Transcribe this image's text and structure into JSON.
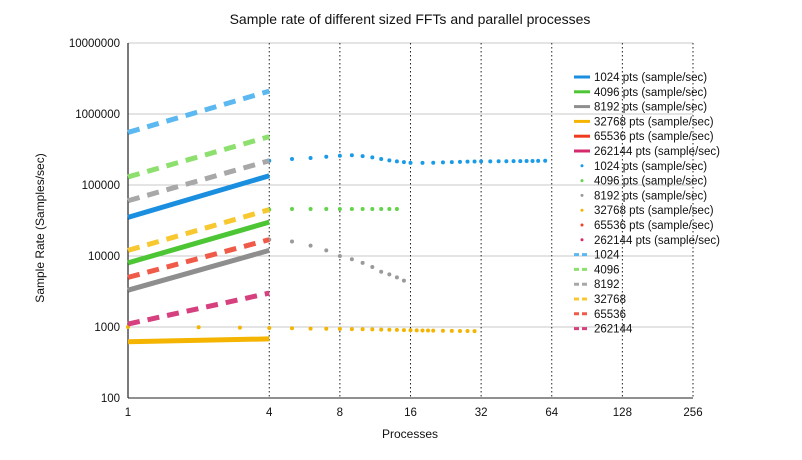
{
  "chart_data": {
    "type": "line",
    "title": "Sample rate of different sized FFTs and parallel processes",
    "xlabel": "Processes",
    "ylabel": "Sample Rate (Samples/sec)",
    "x_scale": "log2",
    "y_scale": "log10",
    "xlim": [
      1,
      256
    ],
    "ylim": [
      100,
      10000000
    ],
    "x_ticks": [
      "1",
      "4",
      "8",
      "16",
      "32",
      "64",
      "128",
      "256"
    ],
    "y_ticks": [
      "100",
      "1000",
      "10000",
      "100000",
      "1000000",
      "10000000"
    ],
    "grid": "vertical dotted, horizontal solid",
    "legend_position": "right",
    "series": [
      {
        "name": "1024 pts (sample/sec)",
        "style": "solid",
        "color": "#1a8fe0",
        "x": [
          1,
          4
        ],
        "y": [
          35000,
          135000
        ]
      },
      {
        "name": "4096 pts (sample/sec)",
        "style": "solid",
        "color": "#4cc634",
        "x": [
          1,
          4
        ],
        "y": [
          8000,
          30000
        ]
      },
      {
        "name": "8192 pts (sample/sec)",
        "style": "solid",
        "color": "#8e8e8e",
        "x": [
          1,
          4
        ],
        "y": [
          3300,
          12000
        ]
      },
      {
        "name": "32768 pts (sample/sec)",
        "style": "solid",
        "color": "#f5b400",
        "x": [
          1,
          4
        ],
        "y": [
          620,
          680
        ]
      },
      {
        "name": "65536 pts (sample/sec)",
        "style": "solid",
        "color": "#f03a1e",
        "x": [],
        "y": []
      },
      {
        "name": "262144 pts (sample/sec)",
        "style": "solid",
        "color": "#d62a6e",
        "x": [],
        "y": []
      },
      {
        "name": "1024 pts (sample/sec)",
        "style": "dotted",
        "color": "#1a9be8",
        "x": [
          4,
          5,
          6,
          7,
          8,
          9,
          10,
          11,
          12,
          13,
          14,
          15,
          16,
          18,
          20,
          22,
          24,
          26,
          28,
          30,
          32,
          35,
          38,
          41,
          44,
          47,
          50,
          53,
          56,
          60
        ],
        "y": [
          220000,
          232000,
          240000,
          250000,
          258000,
          262000,
          255000,
          245000,
          232000,
          222000,
          215000,
          210000,
          205000,
          205000,
          206000,
          208000,
          210000,
          212000,
          213000,
          214000,
          215000,
          215000,
          216000,
          216000,
          217000,
          217000,
          218000,
          218000,
          219000,
          220000
        ]
      },
      {
        "name": "4096 pts (sample/sec)",
        "style": "dotted",
        "color": "#62d34a",
        "x": [
          4,
          5,
          6,
          7,
          8,
          9,
          10,
          11,
          12,
          13,
          14
        ],
        "y": [
          45000,
          46000,
          46000,
          46000,
          46000,
          46000,
          46000,
          46000,
          46000,
          46000,
          46000
        ]
      },
      {
        "name": "8192 pts (sample/sec)",
        "style": "dotted",
        "color": "#9a9a9a",
        "x": [
          4,
          5,
          6,
          7,
          8,
          9,
          10,
          11,
          12,
          13,
          14,
          15
        ],
        "y": [
          17000,
          16000,
          14000,
          12000,
          10000,
          9000,
          8000,
          7000,
          6000,
          5500,
          5000,
          4500
        ]
      },
      {
        "name": "32768 pts (sample/sec)",
        "style": "dotted",
        "color": "#f4b400",
        "x": [
          1,
          2,
          3,
          4,
          5,
          6,
          7,
          8,
          9,
          10,
          11,
          12,
          13,
          14,
          15,
          16,
          17,
          18,
          19,
          20,
          22,
          24,
          26,
          28,
          30
        ],
        "y": [
          1000,
          990,
          980,
          970,
          960,
          950,
          945,
          940,
          935,
          930,
          925,
          920,
          915,
          910,
          905,
          900,
          897,
          894,
          891,
          888,
          885,
          882,
          880,
          878,
          876
        ]
      },
      {
        "name": "65536 pts (sample/sec)",
        "style": "dotted",
        "color": "#ee4422",
        "x": [],
        "y": []
      },
      {
        "name": "262144 pts (sample/sec)",
        "style": "dotted",
        "color": "#d62a6e",
        "x": [],
        "y": []
      },
      {
        "name": "1024",
        "style": "dashed",
        "color": "#5bb8f0",
        "x": [
          1,
          4
        ],
        "y": [
          550000,
          2100000
        ]
      },
      {
        "name": "4096",
        "style": "dashed",
        "color": "#8ee06e",
        "x": [
          1,
          4
        ],
        "y": [
          130000,
          480000
        ]
      },
      {
        "name": "8192",
        "style": "dashed",
        "color": "#a8a8a8",
        "x": [
          1,
          4
        ],
        "y": [
          60000,
          220000
        ]
      },
      {
        "name": "32768",
        "style": "dashed",
        "color": "#f8c830",
        "x": [
          1,
          4
        ],
        "y": [
          12000,
          45000
        ]
      },
      {
        "name": "65536",
        "style": "dashed",
        "color": "#f05a48",
        "x": [
          1,
          4
        ],
        "y": [
          5000,
          17000
        ]
      },
      {
        "name": "262144",
        "style": "dashed",
        "color": "#d6407e",
        "x": [
          1,
          4
        ],
        "y": [
          1100,
          3000
        ]
      }
    ]
  }
}
